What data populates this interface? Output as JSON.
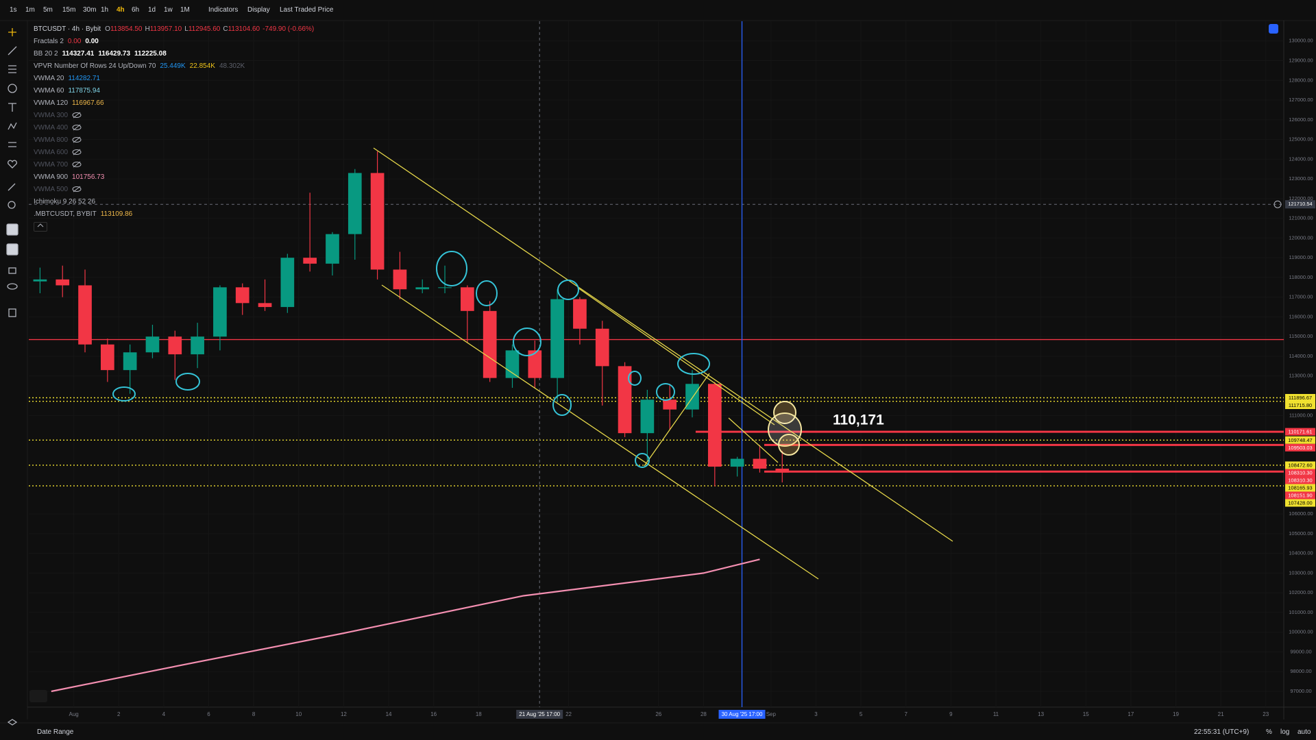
{
  "toolbar": {
    "intervals": [
      "1s",
      "1m",
      "5m",
      "15m",
      "30m",
      "1h",
      "4h",
      "6h",
      "1d",
      "1w",
      "1M"
    ],
    "active_index": 6,
    "menus": [
      "Indicators",
      "Display",
      "Last Traded Price"
    ]
  },
  "legend": {
    "symbol": "BTCUSDT · 4h · Bybit",
    "ohlc": [
      {
        "label": "O",
        "value": "113854.50"
      },
      {
        "label": "H",
        "value": "113957.10"
      },
      {
        "label": "L",
        "value": "112945.60"
      },
      {
        "label": "C",
        "value": "113104.60"
      }
    ],
    "change": "-749.90 (-0.66%)",
    "indicators": [
      {
        "name": "Fractals 2",
        "values": [
          "0.00",
          "0.00"
        ],
        "colors": [
          "#f23645",
          "#ffffff"
        ]
      },
      {
        "name": "BB 20 2",
        "values": [
          "114327.41",
          "116429.73",
          "112225.08"
        ],
        "colors": [
          "#ffffff",
          "#ffffff",
          "#ffffff"
        ]
      },
      {
        "name": "VPVR Number Of Rows 24 Up/Down 70",
        "values": [
          "25.449K",
          "22.854K",
          "48.302K"
        ],
        "colors": [
          "#2196f3",
          "#f0c419",
          "#5d606b"
        ]
      },
      {
        "name": "VWMA 20",
        "values": [
          "114282.71"
        ],
        "colors": [
          "#2196f3"
        ]
      },
      {
        "name": "VWMA 60",
        "values": [
          "117875.94"
        ],
        "colors": [
          "#7fd3e6"
        ]
      },
      {
        "name": "VWMA 120",
        "values": [
          "116967.66"
        ],
        "colors": [
          "#f0b94a"
        ]
      },
      {
        "name": "VWMA 300",
        "hidden": true
      },
      {
        "name": "VWMA 400",
        "hidden": true
      },
      {
        "name": "VWMA 800",
        "hidden": true
      },
      {
        "name": "VWMA 600",
        "hidden": true
      },
      {
        "name": "VWMA 700",
        "hidden": true
      },
      {
        "name": "VWMA 900",
        "values": [
          "101756.73"
        ],
        "colors": [
          "#f48fb1"
        ]
      },
      {
        "name": "VWMA 500",
        "hidden": true
      },
      {
        "name": "Ichimoku 9 26 52 26"
      },
      {
        "name": ".MBTCUSDT, BYBIT",
        "values": [
          "113109.86"
        ],
        "colors": [
          "#f0b94a"
        ]
      }
    ]
  },
  "chart_data": {
    "type": "candlestick",
    "xlim": [
      -2,
      53.8
    ],
    "ylim": [
      96200,
      131000
    ],
    "up_color": "#089981",
    "down_color": "#f23645",
    "x": [
      -2,
      -1,
      0,
      1,
      2,
      3,
      4,
      5,
      6,
      7,
      8,
      9,
      10,
      11,
      12,
      13,
      14,
      15,
      16,
      17,
      18,
      19,
      20,
      21,
      22,
      23,
      24,
      25,
      26,
      27,
      28,
      29,
      30,
      31
    ],
    "open": [
      117800,
      117900,
      117600,
      114600,
      113300,
      114200,
      115000,
      114100,
      115000,
      117500,
      116700,
      116500,
      119000,
      118700,
      120200,
      123300,
      118400,
      117400,
      117500,
      117500,
      116300,
      112900,
      114300,
      112900,
      116900,
      115400,
      113500,
      110100,
      111800,
      111300,
      112600,
      108400,
      108800,
      108300
    ],
    "high": [
      118500,
      118600,
      118400,
      114900,
      114600,
      115600,
      115300,
      115700,
      117600,
      117700,
      117900,
      119200,
      122300,
      120300,
      123500,
      124400,
      119300,
      117900,
      118600,
      117600,
      116800,
      114600,
      114800,
      117400,
      117000,
      115800,
      113700,
      112300,
      112600,
      113300,
      112700,
      108900,
      109500,
      109200
    ],
    "low": [
      117200,
      117000,
      114200,
      112700,
      112100,
      113900,
      112800,
      113400,
      114300,
      116100,
      116300,
      116200,
      118300,
      118100,
      118900,
      117900,
      116900,
      117200,
      117200,
      114700,
      112700,
      112400,
      112400,
      111700,
      114600,
      111500,
      109900,
      108700,
      110300,
      110900,
      107400,
      107900,
      108100,
      107600
    ],
    "close": [
      117900,
      117600,
      114600,
      113300,
      114200,
      115000,
      114100,
      115000,
      117500,
      116700,
      116500,
      119000,
      118700,
      120200,
      123300,
      118400,
      117400,
      117500,
      117500,
      116300,
      112900,
      114300,
      112900,
      116900,
      115400,
      113500,
      110100,
      111800,
      111300,
      112600,
      108400,
      108800,
      108300,
      108100
    ],
    "vwma_900": {
      "color": "#f48fb1",
      "x": [
        -1,
        4,
        12,
        20,
        28,
        30.5
      ],
      "values": [
        97000,
        98150,
        99950,
        101850,
        103000,
        103700
      ]
    },
    "yticks": [
      {
        "value": 130000,
        "label": "130000.00"
      },
      {
        "value": 129000,
        "label": "129000.00"
      },
      {
        "value": 128000,
        "label": "128000.00"
      },
      {
        "value": 127000,
        "label": "127000.00"
      },
      {
        "value": 126000,
        "label": "126000.00"
      },
      {
        "value": 125000,
        "label": "125000.00"
      },
      {
        "value": 124000,
        "label": "124000.00"
      },
      {
        "value": 123000,
        "label": "123000.00"
      },
      {
        "value": 122000,
        "label": "122000.00"
      },
      {
        "value": 121000,
        "label": "121000.00"
      },
      {
        "value": 120000,
        "label": "120000.00"
      },
      {
        "value": 119000,
        "label": "119000.00"
      },
      {
        "value": 118000,
        "label": "118000.00"
      },
      {
        "value": 117000,
        "label": "117000.00"
      },
      {
        "value": 116000,
        "label": "116000.00"
      },
      {
        "value": 115000,
        "label": "115000.00"
      },
      {
        "value": 114000,
        "label": "114000.00"
      },
      {
        "value": 113000,
        "label": "113000.00"
      },
      {
        "value": 111000,
        "label": "111000.00"
      },
      {
        "value": 106000,
        "label": "106000.00"
      },
      {
        "value": 105000,
        "label": "105000.00"
      },
      {
        "value": 104000,
        "label": "104000.00"
      },
      {
        "value": 103000,
        "label": "103000.00"
      },
      {
        "value": 102000,
        "label": "102000.00"
      },
      {
        "value": 101000,
        "label": "101000.00"
      },
      {
        "value": 100000,
        "label": "100000.00"
      },
      {
        "value": 99000,
        "label": "99000.00"
      },
      {
        "value": 98000,
        "label": "98000.00"
      },
      {
        "value": 97000,
        "label": "97000.00"
      }
    ],
    "xticks": [
      {
        "value": 0,
        "label": "Aug"
      },
      2,
      4,
      6,
      8,
      10,
      12,
      14,
      16,
      18,
      22,
      26,
      28,
      {
        "value": 31,
        "label": "Sep"
      },
      {
        "value": 33,
        "label": "3"
      },
      {
        "value": 35,
        "label": "5"
      },
      {
        "value": 37,
        "label": "7"
      },
      {
        "value": 39,
        "label": "9"
      },
      {
        "value": 41,
        "label": "11"
      },
      {
        "value": 43,
        "label": "13"
      },
      {
        "value": 45,
        "label": "15"
      },
      {
        "value": 47,
        "label": "17"
      },
      {
        "value": 49,
        "label": "19"
      },
      {
        "value": 51,
        "label": "21"
      },
      {
        "value": 53,
        "label": "23"
      }
    ],
    "hlines": [
      {
        "value": 114850,
        "color": "#f23645"
      }
    ],
    "price_labels": [
      {
        "value": 111896.67,
        "label": "111896.67",
        "color": "#f0e130",
        "style": "dotted"
      },
      {
        "value": 111715.8,
        "label": "111715.80",
        "color": "#f0e130",
        "style": "dotted"
      },
      {
        "value": 110171.61,
        "label": "110171.61",
        "color": "#f23645",
        "style": "line",
        "from": 27.65
      },
      {
        "value": 109748.47,
        "label": "109748.47",
        "color": "#f0e130",
        "style": "dotted"
      },
      {
        "value": 109503.03,
        "label": "109503.03",
        "color": "#f23645",
        "style": "line",
        "from": 30.7
      },
      {
        "value": 108472.6,
        "label": "108472.60",
        "color": "#f0e130",
        "style": "dotted"
      },
      {
        "value": 108310.3,
        "label": "108310.30",
        "color": "#f23645"
      },
      {
        "value": 108310.3,
        "label": "108310.30",
        "color": "#f23645"
      },
      {
        "value": 108165.93,
        "label": "108165.93",
        "color": "#f0e130"
      },
      {
        "value": 108151.9,
        "label": "108151.90",
        "color": "#f23645",
        "style": "line",
        "from": 30.7
      },
      {
        "value": 107428.0,
        "label": "107428.00",
        "color": "#f0e130",
        "style": "dotted"
      }
    ],
    "crosshair": {
      "x": {
        "value": 20.71,
        "label": "21 Aug '25   17:00"
      },
      "y": {
        "value": 121710.54,
        "label": "121710.54"
      }
    },
    "marker": {
      "value": 29.71,
      "label": "30 Aug '25   17:00",
      "color": "#2962ff"
    },
    "annotation": "110,171"
  },
  "footer": {
    "date_range": "Date Range",
    "clock": "22:55:31 (UTC+9)",
    "scale_buttons": [
      "%",
      "log",
      "auto"
    ]
  }
}
